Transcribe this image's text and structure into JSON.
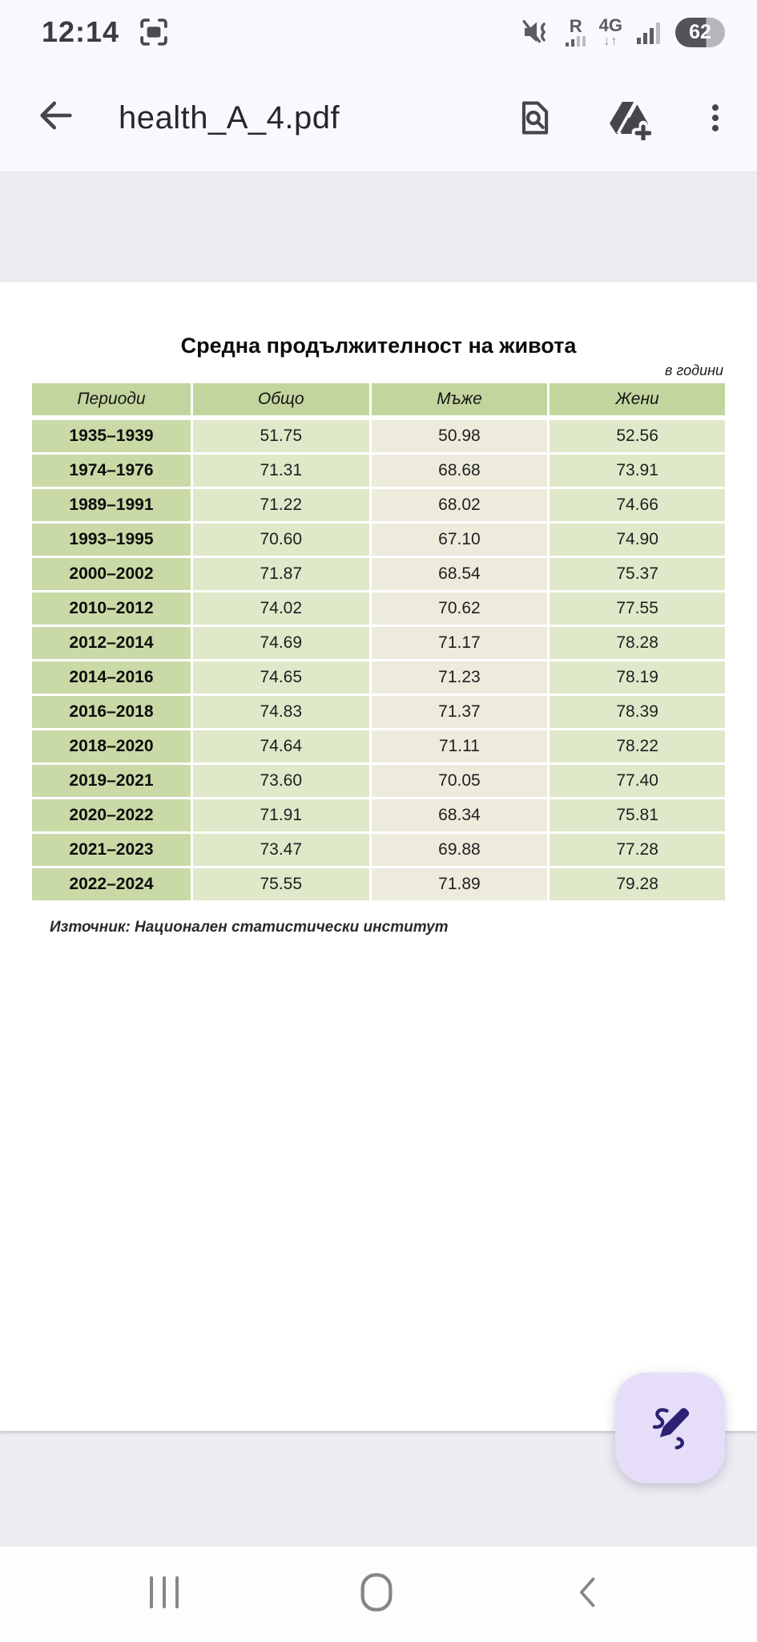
{
  "status_bar": {
    "time": "12:14",
    "roaming_label": "R",
    "network_type": "4G",
    "network_arrows": "↓↑",
    "battery_percent": "62",
    "battery_fill_color": "#54535a",
    "battery_empty_color": "#b7b6bd"
  },
  "app_bar": {
    "title": "health_A_4.pdf"
  },
  "document": {
    "title": "Средна продължителност на живота",
    "unit_note": "в години",
    "source": "Източник: Национален статистически институт",
    "table": {
      "headers": [
        "Периоди",
        "Общо",
        "Мъже",
        "Жени"
      ],
      "rows": [
        [
          "1935–1939",
          "51.75",
          "50.98",
          "52.56"
        ],
        [
          "1974–1976",
          "71.31",
          "68.68",
          "73.91"
        ],
        [
          "1989–1991",
          "71.22",
          "68.02",
          "74.66"
        ],
        [
          "1993–1995",
          "70.60",
          "67.10",
          "74.90"
        ],
        [
          "2000–2002",
          "71.87",
          "68.54",
          "75.37"
        ],
        [
          "2010–2012",
          "74.02",
          "70.62",
          "77.55"
        ],
        [
          "2012–2014",
          "74.69",
          "71.17",
          "78.28"
        ],
        [
          "2014–2016",
          "74.65",
          "71.23",
          "78.19"
        ],
        [
          "2016–2018",
          "74.83",
          "71.37",
          "78.39"
        ],
        [
          "2018–2020",
          "74.64",
          "71.11",
          "78.22"
        ],
        [
          "2019–2021",
          "73.60",
          "70.05",
          "77.40"
        ],
        [
          "2020–2022",
          "71.91",
          "68.34",
          "75.81"
        ],
        [
          "2021–2023",
          "73.47",
          "69.88",
          "77.28"
        ],
        [
          "2022–2024",
          "75.55",
          "71.89",
          "79.28"
        ]
      ]
    }
  },
  "colors": {
    "app_surface": "#f9f8fd",
    "page_gap": "#edecf1",
    "page": "#ffffff",
    "table_header_bg": "#c3d59e",
    "table_period_bg": "#cadaa7",
    "table_green_bg": "#dfe8c9",
    "table_beige_bg": "#edebdc",
    "fab_bg": "#e6def9",
    "fab_icon": "#2d2173",
    "appbar_icon": "#45464a",
    "nav_icon": "#86858b"
  }
}
